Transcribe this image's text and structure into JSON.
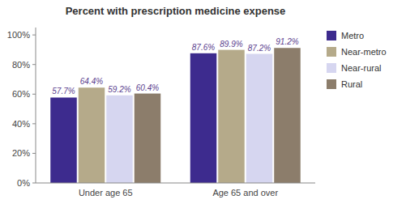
{
  "chart_data": {
    "type": "bar",
    "title": "Percent with prescription medicine expense",
    "categories": [
      "Under age 65",
      "Age 65 and over"
    ],
    "series": [
      {
        "name": "Metro",
        "color": "#3d2b8e",
        "values": [
          57.7,
          87.6
        ],
        "value_labels": [
          "57.7%",
          "87.6%"
        ]
      },
      {
        "name": "Near-metro",
        "color": "#b5aa8a",
        "values": [
          64.4,
          89.9
        ],
        "value_labels": [
          "64.4%",
          "89.9%"
        ]
      },
      {
        "name": "Near-rural",
        "color": "#d6d6f0",
        "values": [
          59.2,
          87.2
        ],
        "value_labels": [
          "59.2%",
          "87.2%"
        ]
      },
      {
        "name": "Rural",
        "color": "#8c7d6b",
        "values": [
          60.4,
          91.2
        ],
        "value_labels": [
          "60.4%",
          "91.2%"
        ]
      }
    ],
    "ylim": [
      0,
      105
    ],
    "yticks": [
      {
        "value": 0,
        "label": "0%"
      },
      {
        "value": 20,
        "label": "20%"
      },
      {
        "value": 40,
        "label": "40%"
      },
      {
        "value": 60,
        "label": "60%"
      },
      {
        "value": 80,
        "label": "80%"
      },
      {
        "value": 100,
        "label": "100%"
      }
    ],
    "grid": false,
    "legend": "right",
    "data_labels": true
  }
}
